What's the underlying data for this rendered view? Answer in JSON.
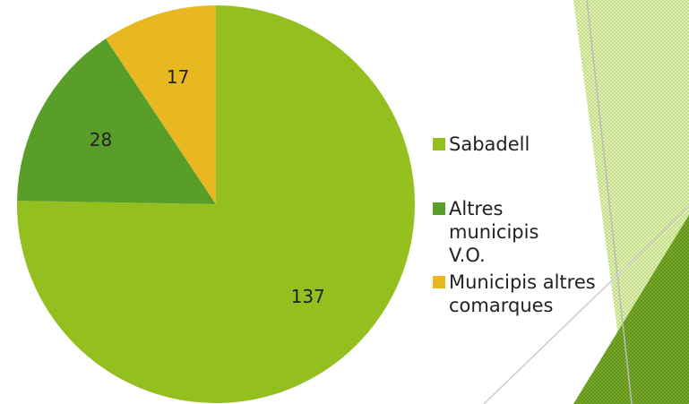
{
  "chart_data": {
    "type": "pie",
    "categories": [
      "Sabadell",
      "Altres municipis V.O.",
      "Municipis altres comarques"
    ],
    "values": [
      137,
      28,
      17
    ],
    "colors": [
      "#93c01f",
      "#5a9e2a",
      "#e8b820"
    ],
    "legend": "right"
  }
}
